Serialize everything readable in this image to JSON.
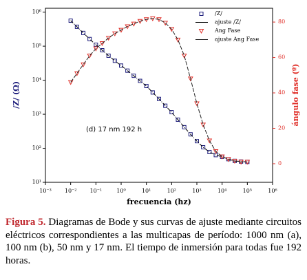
{
  "chart_data": {
    "type": "line",
    "x_label": "frecuencia (hz)",
    "y_label": "/Z/ (Ω)",
    "y2_label": "ángulo fase (º)",
    "annotation": "(d) 17 nm 192 h",
    "xscale": "log",
    "yscale": "log",
    "legend": "upper right",
    "xlim": [
      0.001,
      1000000
    ],
    "ylim": [
      10,
      1300000
    ],
    "y2lim": [
      -10.5,
      87.8
    ],
    "xticks": [
      {
        "value": 0.001,
        "label": "10⁻³"
      },
      {
        "value": 0.01,
        "label": "10⁻²"
      },
      {
        "value": 0.1,
        "label": "10⁻¹"
      },
      {
        "value": 1,
        "label": "10⁰"
      },
      {
        "value": 10,
        "label": "10¹"
      },
      {
        "value": 100,
        "label": "10²"
      },
      {
        "value": 1000,
        "label": "10³"
      },
      {
        "value": 10000,
        "label": "10⁴"
      },
      {
        "value": 100000,
        "label": "10⁵"
      },
      {
        "value": 1000000,
        "label": "10⁶"
      }
    ],
    "yticks": [
      {
        "value": 10,
        "label": "10¹"
      },
      {
        "value": 100,
        "label": "10²"
      },
      {
        "value": 1000,
        "label": "10³"
      },
      {
        "value": 10000,
        "label": "10⁴"
      },
      {
        "value": 100000,
        "label": "10⁵"
      },
      {
        "value": 1000000,
        "label": "10⁶"
      }
    ],
    "y2ticks": [
      0,
      20,
      40,
      60,
      80
    ],
    "x": [
      0.01,
      0.01778,
      0.03162,
      0.05623,
      0.1,
      0.1778,
      0.3162,
      0.5623,
      1,
      1.778,
      3.162,
      5.623,
      10,
      17.78,
      31.62,
      56.23,
      100,
      177.8,
      316.2,
      562.3,
      1000,
      1778,
      3162,
      5623,
      10000,
      17783,
      31623,
      56234,
      100000
    ],
    "series": [
      {
        "name": "/Z/",
        "color": "#1a1a7a",
        "marker": "square",
        "values": [
          562000,
          372000,
          245000,
          162000,
          110000,
          75900,
          52500,
          37200,
          26900,
          19100,
          13500,
          9550,
          6760,
          4370,
          2820,
          1780,
          1150,
          692,
          417,
          257,
          162,
          107,
          77.6,
          63.1,
          56.2,
          47.9,
          42.7,
          40.7,
          39.8
        ]
      },
      {
        "name": "ajuste /Z/",
        "color": "#000000",
        "marker": "line",
        "values": [
          562000,
          372000,
          245000,
          162000,
          110000,
          75900,
          52500,
          37200,
          26900,
          19100,
          13500,
          9550,
          6760,
          4370,
          2820,
          1780,
          1150,
          692,
          417,
          257,
          162,
          107,
          77.6,
          63.1,
          56.2,
          47.9,
          42.7,
          40.7,
          39.8
        ]
      },
      {
        "name": "Ang Fase",
        "color": "#e0302a",
        "marker": "triangle",
        "axis": "y2",
        "values": [
          46,
          51,
          56,
          61,
          65,
          68,
          71,
          73.5,
          75.5,
          77.5,
          79,
          80.5,
          81.5,
          82,
          81.5,
          79.5,
          76,
          70,
          61,
          48,
          34,
          22,
          13,
          7,
          4,
          2.5,
          1.5,
          1,
          1
        ]
      },
      {
        "name": "ajuste Ang Fase",
        "color": "#222222",
        "marker": "line",
        "axis": "y2",
        "values": [
          46,
          51,
          56,
          61,
          65,
          68,
          71,
          73.5,
          75.5,
          77.5,
          79,
          80.5,
          81.5,
          82,
          81.5,
          79.5,
          76,
          70,
          61,
          48,
          34,
          22,
          13,
          7,
          4,
          2.5,
          1.5,
          1,
          1
        ]
      }
    ]
  },
  "caption": {
    "label": "Figura 5.",
    "text": "Diagramas de Bode y sus curvas de ajuste mediante circuitos eléctricos correspondientes a las multicapas de período: 1000 nm (a), 100 nm (b), 50 nm y 17 nm. El tiempo de inmersión para todas fue 192 horas."
  }
}
